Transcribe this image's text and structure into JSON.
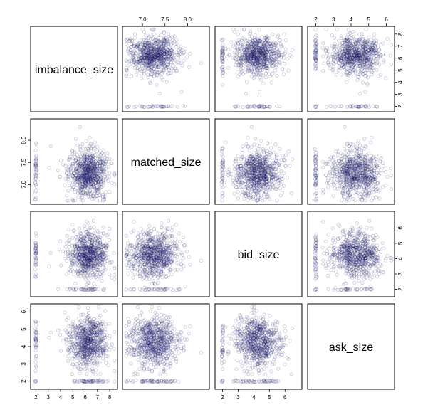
{
  "chart_data": {
    "type": "scatter",
    "title": "",
    "variables": [
      "imbalance_size",
      "matched_size",
      "bid_size",
      "ask_size"
    ],
    "variable_ranges": {
      "imbalance_size": [
        1.8,
        8.4
      ],
      "matched_size": [
        6.62,
        8.42
      ],
      "bid_size": [
        1.7,
        6.9
      ],
      "ask_size": [
        1.7,
        6.3
      ]
    },
    "axis_ticks": {
      "imbalance_size": [
        "2",
        "3",
        "4",
        "5",
        "6",
        "7",
        "8"
      ],
      "matched_size": [
        "7.0",
        "7.5",
        "8.0"
      ],
      "bid_size": [
        "2",
        "3",
        "4",
        "5",
        "6"
      ],
      "ask_size": [
        "2",
        "3",
        "4",
        "5",
        "6"
      ]
    },
    "tick_axis_sides": {
      "top": [
        "matched_size",
        "ask_size"
      ],
      "bottom": [
        "imbalance_size",
        "bid_size"
      ],
      "left": [
        "matched_size",
        "ask_size"
      ],
      "right": [
        "imbalance_size",
        "bid_size"
      ]
    },
    "distributions": {
      "imbalance_size": {
        "center": 6.3,
        "spread": 0.8
      },
      "matched_size": {
        "center": 7.25,
        "spread": 0.28
      },
      "bid_size": {
        "center": 4.3,
        "spread": 0.7
      },
      "ask_size": {
        "center": 4.3,
        "spread": 0.75
      }
    },
    "point_count_per_panel": 800,
    "marker": "open-circle",
    "point_color": "#0b0b5a",
    "point_alpha": 0.22,
    "grid": false,
    "legend": "none"
  }
}
